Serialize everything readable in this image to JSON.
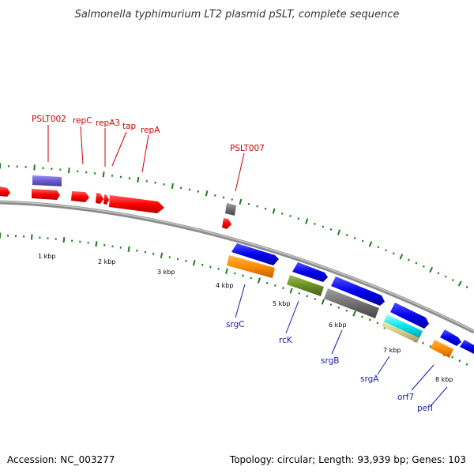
{
  "title": "Salmonella typhimurium LT2 plasmid pSLT, complete sequence",
  "footer": {
    "accession": "Accession: NC_003277",
    "summary": "Topology: circular; Length: 93,939 bp; Genes: 103"
  },
  "colors": {
    "forward_cds": "#ff0000",
    "forward_other": "#6a5acd",
    "reverse_cds": "#0000ee",
    "orange": "#ff8c00",
    "olive": "#6b8e23",
    "gray": "#707070",
    "cyan": "#00e5ee",
    "khaki": "#d2c98a",
    "top_label": "#cc0000",
    "bottom_label": "#1a1aa6",
    "tick": "#1e7b1e",
    "backbone": "#8c8c8c"
  },
  "top_labels": [
    {
      "name": "PSLT002",
      "label": "PSLT002"
    },
    {
      "name": "repC",
      "label": "repC"
    },
    {
      "name": "repA3",
      "label": "repA3"
    },
    {
      "name": "tap",
      "label": "tap"
    },
    {
      "name": "repA",
      "label": "repA"
    },
    {
      "name": "PSLT007",
      "label": "PSLT007"
    }
  ],
  "bottom_labels": [
    {
      "name": "srgC",
      "label": "srgC"
    },
    {
      "name": "rck",
      "label": "rcK"
    },
    {
      "name": "srgB",
      "label": "srgB"
    },
    {
      "name": "srgA",
      "label": "srgA"
    },
    {
      "name": "orf7",
      "label": "orf7"
    },
    {
      "name": "pefI",
      "label": "pefI"
    }
  ],
  "kbp_labels": [
    "1 kbp",
    "2 kbp",
    "3 kbp",
    "4 kbp",
    "5 kbp",
    "6 kbp",
    "7 kbp",
    "8 kbp"
  ]
}
